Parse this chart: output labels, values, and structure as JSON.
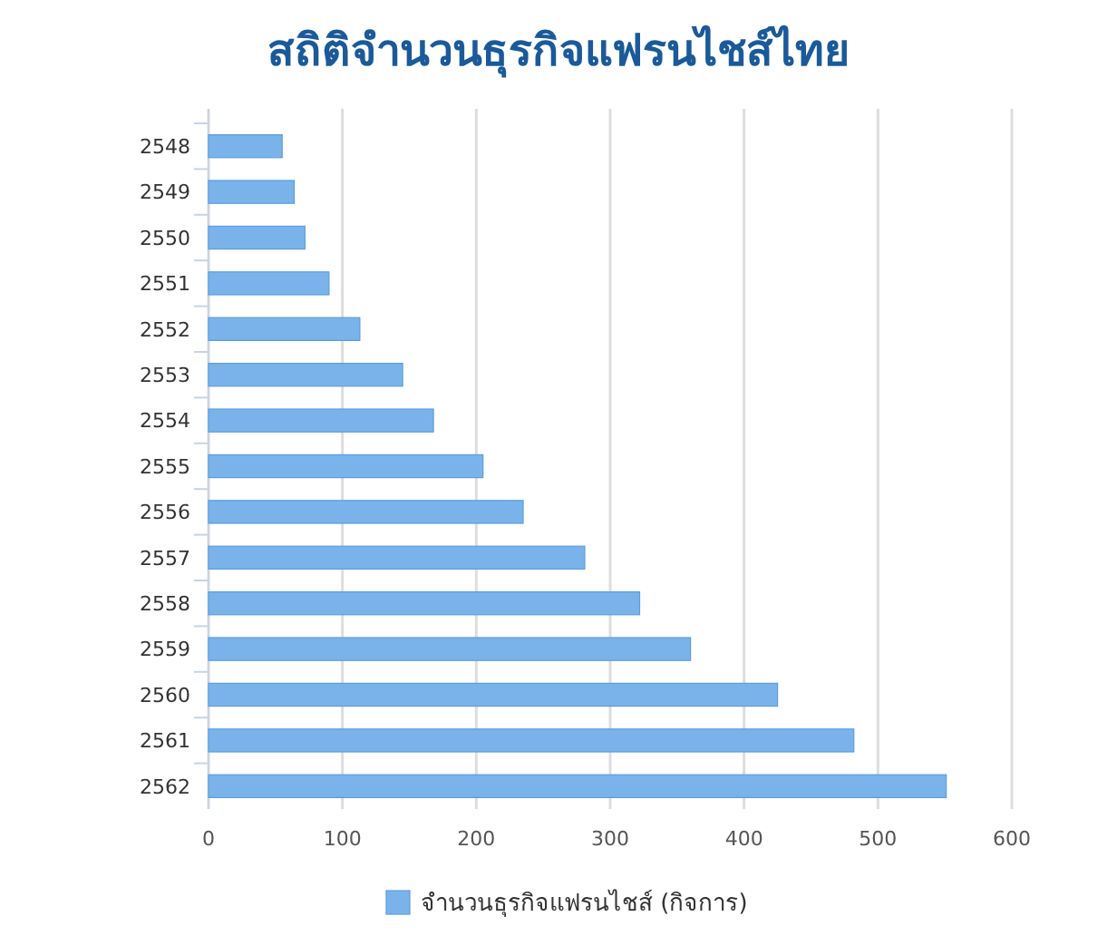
{
  "chart_data": {
    "type": "bar",
    "orientation": "horizontal",
    "title": "สถิติจำนวนธุรกิจแฟรนไชส์ไทย",
    "categories": [
      "2548",
      "2549",
      "2550",
      "2551",
      "2552",
      "2553",
      "2554",
      "2555",
      "2556",
      "2557",
      "2558",
      "2559",
      "2560",
      "2561",
      "2562"
    ],
    "series": [
      {
        "name": "จำนวนธุรกิจแฟรนไชส์ (กิจการ)",
        "color": "#7ab3ea",
        "values": [
          55,
          64,
          72,
          90,
          113,
          145,
          168,
          205,
          235,
          281,
          322,
          360,
          425,
          482,
          551
        ]
      }
    ],
    "xlim": [
      0,
      600
    ],
    "xticks": [
      0,
      100,
      200,
      300,
      400,
      500,
      600
    ],
    "grid": "x",
    "legend": "bottom"
  }
}
